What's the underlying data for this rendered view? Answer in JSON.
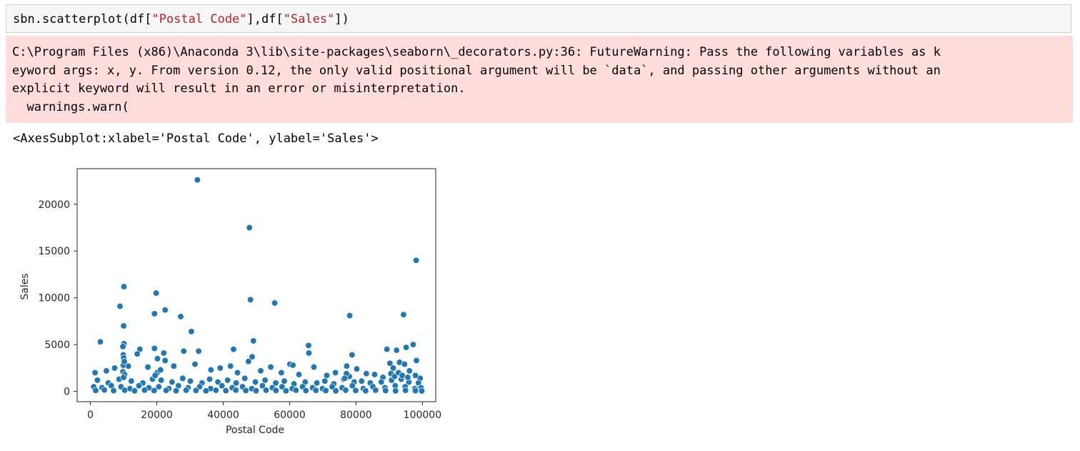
{
  "cell": {
    "code_prefix": "sbn.scatterplot(df[",
    "code_str1": "\"Postal Code\"",
    "code_mid": "],df[",
    "code_str2": "\"Sales\"",
    "code_suffix": "])"
  },
  "warning": {
    "line1": "C:\\Program Files (x86)\\Anaconda 3\\lib\\site-packages\\seaborn\\_decorators.py:36: FutureWarning: Pass the following variables as k",
    "line2": "eyword args: x, y. From version 0.12, the only valid positional argument will be `data`, and passing other arguments without an",
    "line3": "explicit keyword will result in an error or misinterpretation.",
    "line4": "  warnings.warn("
  },
  "output_repr": "<AxesSubplot:xlabel='Postal Code', ylabel='Sales'>",
  "chart_data": {
    "type": "scatter",
    "xlabel": "Postal Code",
    "ylabel": "Sales",
    "xlim": [
      -4000,
      104000
    ],
    "ylim": [
      -1100,
      23800
    ],
    "xticks": [
      0,
      20000,
      40000,
      60000,
      80000,
      100000
    ],
    "xtick_labels": [
      "0",
      "20000",
      "40000",
      "60000",
      "80000",
      "100000"
    ],
    "yticks": [
      0,
      5000,
      10000,
      15000,
      20000
    ],
    "ytick_labels": [
      "0",
      "5000",
      "10000",
      "15000",
      "20000"
    ],
    "grid": false,
    "marker_color": "#1f77b4",
    "points": [
      [
        32200,
        22600
      ],
      [
        47900,
        17500
      ],
      [
        98100,
        14000
      ],
      [
        10100,
        11200
      ],
      [
        19800,
        10500
      ],
      [
        48200,
        9800
      ],
      [
        55500,
        9450
      ],
      [
        8900,
        9100
      ],
      [
        22500,
        8700
      ],
      [
        19300,
        8300
      ],
      [
        94300,
        8200
      ],
      [
        27200,
        8000
      ],
      [
        78100,
        8100
      ],
      [
        10000,
        7000
      ],
      [
        30400,
        6400
      ],
      [
        49100,
        5400
      ],
      [
        3000,
        5300
      ],
      [
        10100,
        5100
      ],
      [
        9800,
        4800
      ],
      [
        65700,
        4900
      ],
      [
        97200,
        5000
      ],
      [
        95100,
        4700
      ],
      [
        92200,
        4400
      ],
      [
        89300,
        4500
      ],
      [
        19300,
        4600
      ],
      [
        14900,
        4500
      ],
      [
        43100,
        4500
      ],
      [
        32600,
        4300
      ],
      [
        28100,
        4300
      ],
      [
        22100,
        4100
      ],
      [
        14100,
        4000
      ],
      [
        65800,
        4100
      ],
      [
        9900,
        3900
      ],
      [
        78800,
        3900
      ],
      [
        48700,
        3700
      ],
      [
        20200,
        3500
      ],
      [
        98200,
        3300
      ],
      [
        93100,
        3100
      ],
      [
        90200,
        3000
      ],
      [
        10000,
        3600
      ],
      [
        22500,
        3300
      ],
      [
        47600,
        3200
      ],
      [
        60100,
        2900
      ],
      [
        61000,
        2800
      ],
      [
        54300,
        2600
      ],
      [
        39100,
        2500
      ],
      [
        42200,
        2700
      ],
      [
        31500,
        2900
      ],
      [
        25100,
        2700
      ],
      [
        17300,
        2600
      ],
      [
        4800,
        2200
      ],
      [
        1400,
        2000
      ],
      [
        7300,
        2500
      ],
      [
        11400,
        2700
      ],
      [
        36300,
        2300
      ],
      [
        44300,
        2000
      ],
      [
        51300,
        2200
      ],
      [
        57500,
        2000
      ],
      [
        62800,
        1800
      ],
      [
        67300,
        2600
      ],
      [
        71200,
        1700
      ],
      [
        73800,
        2000
      ],
      [
        77200,
        2700
      ],
      [
        80200,
        2400
      ],
      [
        83100,
        1900
      ],
      [
        85600,
        1800
      ],
      [
        88100,
        1500
      ],
      [
        91200,
        2500
      ],
      [
        96100,
        2200
      ],
      [
        99300,
        1400
      ],
      [
        2100,
        1200
      ],
      [
        5400,
        900
      ],
      [
        8600,
        1300
      ],
      [
        12300,
        1100
      ],
      [
        15800,
        900
      ],
      [
        18700,
        1300
      ],
      [
        21300,
        1200
      ],
      [
        24600,
        1000
      ],
      [
        27800,
        1400
      ],
      [
        30100,
        1100
      ],
      [
        33600,
        900
      ],
      [
        35900,
        1300
      ],
      [
        38400,
        1000
      ],
      [
        41300,
        1200
      ],
      [
        43900,
        900
      ],
      [
        46500,
        1400
      ],
      [
        49700,
        1000
      ],
      [
        52600,
        1200
      ],
      [
        55800,
        900
      ],
      [
        58400,
        1100
      ],
      [
        61300,
        800
      ],
      [
        64700,
        1000
      ],
      [
        68200,
        900
      ],
      [
        70600,
        1100
      ],
      [
        73300,
        800
      ],
      [
        76300,
        1300
      ],
      [
        79400,
        1000
      ],
      [
        81700,
        1100
      ],
      [
        84300,
        900
      ],
      [
        87600,
        1000
      ],
      [
        90700,
        1200
      ],
      [
        93600,
        1300
      ],
      [
        95900,
        1000
      ],
      [
        98800,
        900
      ],
      [
        1000,
        500
      ],
      [
        3500,
        400
      ],
      [
        6300,
        600
      ],
      [
        9200,
        500
      ],
      [
        11900,
        300
      ],
      [
        14600,
        600
      ],
      [
        17600,
        400
      ],
      [
        20600,
        500
      ],
      [
        23600,
        300
      ],
      [
        26500,
        600
      ],
      [
        29400,
        400
      ],
      [
        32900,
        500
      ],
      [
        36200,
        300
      ],
      [
        39600,
        600
      ],
      [
        42700,
        400
      ],
      [
        45800,
        500
      ],
      [
        48600,
        300
      ],
      [
        51800,
        600
      ],
      [
        54800,
        400
      ],
      [
        57700,
        500
      ],
      [
        60800,
        300
      ],
      [
        63900,
        500
      ],
      [
        66900,
        400
      ],
      [
        69900,
        300
      ],
      [
        72800,
        500
      ],
      [
        75800,
        400
      ],
      [
        78900,
        600
      ],
      [
        82200,
        300
      ],
      [
        85100,
        500
      ],
      [
        88700,
        400
      ],
      [
        91800,
        600
      ],
      [
        94800,
        500
      ],
      [
        97700,
        300
      ],
      [
        99600,
        400
      ],
      [
        1600,
        100
      ],
      [
        4200,
        150
      ],
      [
        7000,
        80
      ],
      [
        10300,
        120
      ],
      [
        13300,
        60
      ],
      [
        16300,
        140
      ],
      [
        19200,
        90
      ],
      [
        22800,
        110
      ],
      [
        25800,
        70
      ],
      [
        28800,
        130
      ],
      [
        31800,
        100
      ],
      [
        34800,
        60
      ],
      [
        37800,
        120
      ],
      [
        40800,
        80
      ],
      [
        43800,
        140
      ],
      [
        46800,
        90
      ],
      [
        49900,
        70
      ],
      [
        52900,
        120
      ],
      [
        55900,
        100
      ],
      [
        58900,
        60
      ],
      [
        61900,
        130
      ],
      [
        64900,
        80
      ],
      [
        67900,
        110
      ],
      [
        70900,
        90
      ],
      [
        73900,
        60
      ],
      [
        76900,
        120
      ],
      [
        79900,
        100
      ],
      [
        82900,
        70
      ],
      [
        85900,
        130
      ],
      [
        88900,
        90
      ],
      [
        91900,
        60
      ],
      [
        94900,
        110
      ],
      [
        97900,
        80
      ],
      [
        99800,
        50
      ],
      [
        9800,
        2100
      ],
      [
        10300,
        1800
      ],
      [
        10000,
        1500
      ],
      [
        9900,
        2800
      ],
      [
        10200,
        3200
      ],
      [
        90500,
        1900
      ],
      [
        91600,
        1600
      ],
      [
        92800,
        2000
      ],
      [
        93900,
        1700
      ],
      [
        94600,
        2900
      ],
      [
        95600,
        1500
      ],
      [
        97900,
        1700
      ],
      [
        78000,
        1600
      ],
      [
        77100,
        1900
      ],
      [
        76600,
        1400
      ],
      [
        20100,
        2000
      ],
      [
        19500,
        1700
      ],
      [
        21100,
        2300
      ]
    ]
  }
}
